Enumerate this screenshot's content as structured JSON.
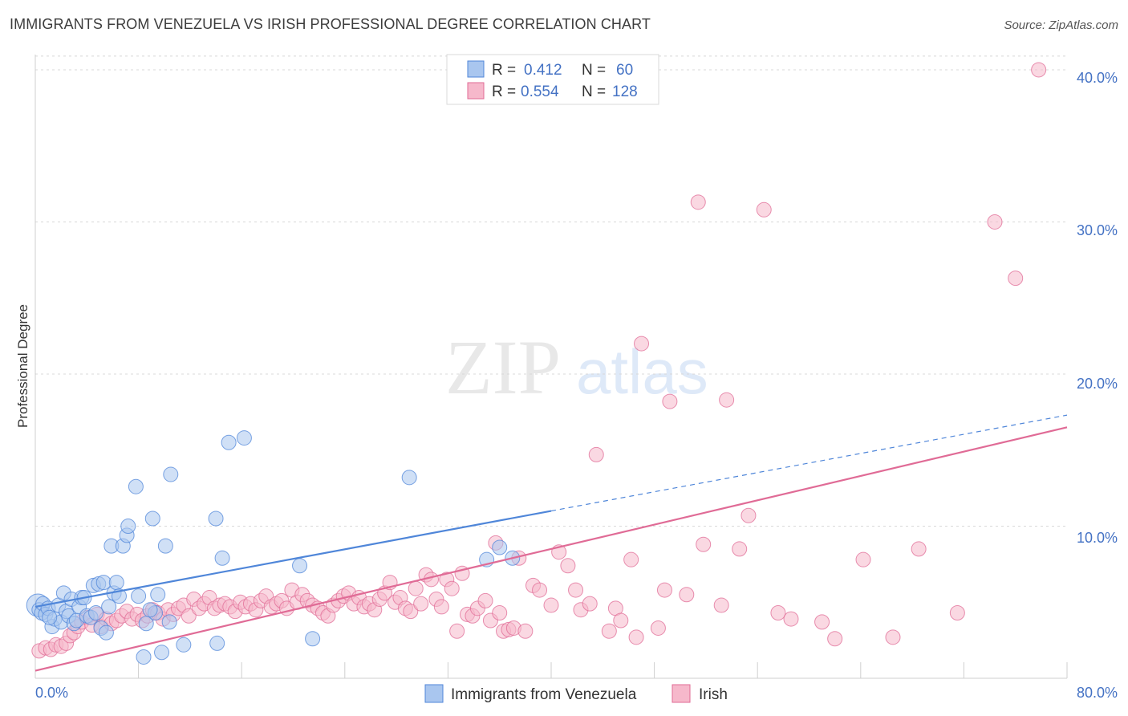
{
  "title": "IMMIGRANTS FROM VENEZUELA VS IRISH PROFESSIONAL DEGREE CORRELATION CHART",
  "source": "Source: ZipAtlas.com",
  "watermark": {
    "zip": "ZIP",
    "atlas": "atlas"
  },
  "colors": {
    "blue": "#4f86d9",
    "blue_fill": "#a9c6ef",
    "pink": "#e06b96",
    "pink_fill": "#f6b8cb",
    "tick": "#4472c4",
    "grid": "#d8d8d8"
  },
  "legend": {
    "rows": [
      {
        "r_label": "R =",
        "r_value": "0.412",
        "n_label": "N =",
        "n_value": "60"
      },
      {
        "r_label": "R =",
        "r_value": "0.554",
        "n_label": "N =",
        "n_value": "128"
      }
    ]
  },
  "chart_data": {
    "type": "scatter",
    "title": "IMMIGRANTS FROM VENEZUELA VS IRISH PROFESSIONAL DEGREE CORRELATION CHART",
    "xlabel": "",
    "ylabel": "Professional Degree",
    "xlim": [
      0,
      80
    ],
    "ylim": [
      0,
      41
    ],
    "x_tick_labels": [
      "0.0%",
      "80.0%"
    ],
    "y_ticks": [
      10,
      20,
      30,
      40
    ],
    "y_tick_labels": [
      "10.0%",
      "20.0%",
      "30.0%",
      "40.0%"
    ],
    "grid": true,
    "series": [
      {
        "name": "Immigrants from Venezuela",
        "color": "blue",
        "trend": {
          "x0": 0,
          "y0": 4.7,
          "x1": 40,
          "y1": 11.0,
          "dash_x1": 80,
          "dash_y1": 17.3
        },
        "points": [
          [
            0.2,
            4.8
          ],
          [
            0.3,
            4.5
          ],
          [
            0.5,
            4.3
          ],
          [
            0.6,
            4.9
          ],
          [
            0.8,
            4.2
          ],
          [
            1.0,
            4.6
          ],
          [
            1.3,
            3.4
          ],
          [
            1.5,
            3.9
          ],
          [
            1.8,
            4.8
          ],
          [
            2.0,
            3.7
          ],
          [
            2.2,
            5.6
          ],
          [
            2.4,
            4.4
          ],
          [
            2.6,
            4.1
          ],
          [
            2.8,
            5.2
          ],
          [
            3.0,
            3.6
          ],
          [
            3.2,
            3.8
          ],
          [
            3.4,
            4.7
          ],
          [
            3.6,
            5.3
          ],
          [
            3.8,
            5.3
          ],
          [
            4.0,
            4.1
          ],
          [
            4.3,
            4.0
          ],
          [
            4.5,
            6.1
          ],
          [
            4.7,
            4.3
          ],
          [
            4.9,
            6.2
          ],
          [
            5.1,
            3.3
          ],
          [
            5.3,
            6.3
          ],
          [
            5.5,
            3.0
          ],
          [
            5.7,
            4.7
          ],
          [
            5.9,
            8.7
          ],
          [
            6.1,
            5.6
          ],
          [
            6.3,
            6.3
          ],
          [
            6.5,
            5.4
          ],
          [
            6.8,
            8.7
          ],
          [
            7.1,
            9.4
          ],
          [
            7.2,
            10.0
          ],
          [
            7.8,
            12.6
          ],
          [
            8.0,
            5.4
          ],
          [
            8.4,
            1.4
          ],
          [
            8.6,
            3.6
          ],
          [
            9.1,
            10.5
          ],
          [
            9.3,
            4.3
          ],
          [
            9.5,
            5.5
          ],
          [
            9.8,
            1.7
          ],
          [
            10.1,
            8.7
          ],
          [
            10.4,
            3.7
          ],
          [
            10.5,
            13.4
          ],
          [
            11.5,
            2.2
          ],
          [
            14.0,
            10.5
          ],
          [
            14.1,
            2.3
          ],
          [
            14.5,
            7.9
          ],
          [
            15.0,
            15.5
          ],
          [
            16.2,
            15.8
          ],
          [
            20.5,
            7.4
          ],
          [
            21.5,
            2.6
          ],
          [
            29.0,
            13.2
          ],
          [
            35.0,
            7.8
          ],
          [
            36.0,
            8.6
          ],
          [
            37.0,
            7.9
          ],
          [
            8.9,
            4.5
          ],
          [
            1.1,
            4.0
          ]
        ]
      },
      {
        "name": "Irish",
        "color": "pink",
        "trend": {
          "x0": 0,
          "y0": 0.5,
          "x1": 80,
          "y1": 16.5
        },
        "points": [
          [
            0.3,
            1.8
          ],
          [
            0.8,
            2.0
          ],
          [
            1.2,
            1.9
          ],
          [
            1.6,
            2.2
          ],
          [
            2.0,
            2.1
          ],
          [
            2.4,
            2.3
          ],
          [
            2.7,
            2.8
          ],
          [
            3.0,
            3.0
          ],
          [
            3.3,
            3.4
          ],
          [
            3.6,
            3.7
          ],
          [
            4.0,
            4.0
          ],
          [
            4.4,
            3.5
          ],
          [
            4.8,
            4.2
          ],
          [
            5.1,
            3.4
          ],
          [
            5.5,
            3.9
          ],
          [
            5.9,
            3.6
          ],
          [
            6.3,
            3.8
          ],
          [
            6.7,
            4.1
          ],
          [
            7.1,
            4.4
          ],
          [
            7.5,
            3.9
          ],
          [
            7.9,
            4.2
          ],
          [
            8.3,
            3.8
          ],
          [
            8.7,
            4.1
          ],
          [
            9.1,
            4.5
          ],
          [
            9.5,
            4.3
          ],
          [
            9.9,
            3.9
          ],
          [
            10.3,
            4.5
          ],
          [
            10.7,
            4.2
          ],
          [
            11.1,
            4.6
          ],
          [
            11.5,
            4.8
          ],
          [
            11.9,
            4.1
          ],
          [
            12.3,
            5.2
          ],
          [
            12.7,
            4.6
          ],
          [
            13.1,
            4.9
          ],
          [
            13.5,
            5.3
          ],
          [
            13.9,
            4.6
          ],
          [
            14.3,
            4.8
          ],
          [
            14.7,
            4.9
          ],
          [
            15.1,
            4.7
          ],
          [
            15.5,
            4.4
          ],
          [
            15.9,
            5.0
          ],
          [
            16.3,
            4.7
          ],
          [
            16.7,
            4.9
          ],
          [
            17.1,
            4.5
          ],
          [
            17.5,
            5.1
          ],
          [
            17.9,
            5.4
          ],
          [
            18.3,
            4.7
          ],
          [
            18.7,
            4.9
          ],
          [
            19.1,
            5.1
          ],
          [
            19.5,
            4.6
          ],
          [
            19.9,
            5.8
          ],
          [
            20.3,
            5.0
          ],
          [
            20.7,
            5.5
          ],
          [
            21.1,
            5.1
          ],
          [
            21.5,
            4.8
          ],
          [
            21.9,
            4.6
          ],
          [
            22.3,
            4.3
          ],
          [
            22.7,
            4.1
          ],
          [
            23.1,
            4.8
          ],
          [
            23.5,
            5.1
          ],
          [
            23.9,
            5.4
          ],
          [
            24.3,
            5.6
          ],
          [
            24.7,
            4.9
          ],
          [
            25.1,
            5.3
          ],
          [
            25.5,
            4.7
          ],
          [
            25.9,
            4.9
          ],
          [
            26.3,
            4.5
          ],
          [
            26.7,
            5.2
          ],
          [
            27.1,
            5.6
          ],
          [
            27.5,
            6.3
          ],
          [
            27.9,
            5.0
          ],
          [
            28.3,
            5.3
          ],
          [
            28.7,
            4.6
          ],
          [
            29.1,
            4.4
          ],
          [
            29.5,
            5.9
          ],
          [
            29.9,
            4.9
          ],
          [
            30.3,
            6.8
          ],
          [
            30.7,
            6.5
          ],
          [
            31.1,
            5.2
          ],
          [
            31.5,
            4.7
          ],
          [
            31.9,
            6.5
          ],
          [
            32.3,
            5.9
          ],
          [
            32.7,
            3.1
          ],
          [
            33.1,
            6.9
          ],
          [
            33.5,
            4.2
          ],
          [
            33.9,
            4.1
          ],
          [
            34.3,
            4.6
          ],
          [
            34.9,
            5.1
          ],
          [
            35.3,
            3.8
          ],
          [
            35.7,
            8.9
          ],
          [
            36.0,
            4.3
          ],
          [
            36.3,
            3.1
          ],
          [
            36.7,
            3.2
          ],
          [
            37.1,
            3.3
          ],
          [
            37.5,
            7.9
          ],
          [
            38.0,
            3.1
          ],
          [
            38.6,
            6.1
          ],
          [
            39.1,
            5.8
          ],
          [
            40.6,
            8.3
          ],
          [
            40.0,
            4.8
          ],
          [
            41.3,
            7.4
          ],
          [
            41.9,
            5.8
          ],
          [
            42.3,
            4.5
          ],
          [
            43.0,
            4.9
          ],
          [
            43.5,
            14.7
          ],
          [
            44.5,
            3.1
          ],
          [
            45.0,
            4.6
          ],
          [
            45.4,
            3.8
          ],
          [
            46.2,
            7.8
          ],
          [
            46.6,
            2.7
          ],
          [
            47.0,
            22.0
          ],
          [
            48.3,
            3.3
          ],
          [
            48.8,
            5.8
          ],
          [
            49.2,
            18.2
          ],
          [
            50.5,
            5.5
          ],
          [
            51.4,
            31.3
          ],
          [
            51.8,
            8.8
          ],
          [
            53.2,
            4.8
          ],
          [
            53.6,
            18.3
          ],
          [
            54.6,
            8.5
          ],
          [
            55.3,
            10.7
          ],
          [
            56.5,
            30.8
          ],
          [
            57.6,
            4.3
          ],
          [
            58.6,
            3.9
          ],
          [
            61.0,
            3.7
          ],
          [
            62.0,
            2.6
          ],
          [
            64.2,
            7.8
          ],
          [
            66.5,
            2.7
          ],
          [
            68.5,
            8.5
          ],
          [
            71.5,
            4.3
          ],
          [
            74.4,
            30.0
          ],
          [
            76.0,
            26.3
          ],
          [
            77.8,
            40.0
          ]
        ]
      }
    ]
  },
  "bottom_legend": {
    "items": [
      {
        "label": "Immigrants from Venezuela"
      },
      {
        "label": "Irish"
      }
    ]
  }
}
